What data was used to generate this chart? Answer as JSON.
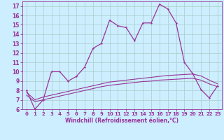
{
  "xlabel": "Windchill (Refroidissement éolien,°C)",
  "background_color": "#cceeff",
  "line_color": "#993399",
  "grid_color": "#aacccc",
  "xlim": [
    -0.5,
    23.5
  ],
  "ylim": [
    6,
    17.5
  ],
  "xticks": [
    0,
    1,
    2,
    3,
    4,
    5,
    6,
    7,
    8,
    9,
    10,
    11,
    12,
    13,
    14,
    15,
    16,
    17,
    18,
    19,
    20,
    21,
    22,
    23
  ],
  "yticks": [
    6,
    7,
    8,
    9,
    10,
    11,
    12,
    13,
    14,
    15,
    16,
    17
  ],
  "line1_x": [
    0,
    1,
    2,
    3,
    4,
    5,
    6,
    7,
    8,
    9,
    10,
    11,
    12,
    13,
    14,
    15,
    16,
    17,
    18,
    19,
    20,
    21,
    22,
    23
  ],
  "line1_y": [
    8.0,
    6.0,
    7.0,
    10.0,
    10.0,
    9.0,
    9.5,
    10.5,
    12.5,
    13.0,
    15.5,
    14.9,
    14.7,
    13.3,
    15.2,
    15.2,
    17.2,
    16.7,
    15.2,
    11.0,
    9.8,
    8.1,
    7.2,
    8.5
  ],
  "line2_x": [
    0,
    1,
    2,
    3,
    4,
    5,
    6,
    7,
    8,
    9,
    10,
    11,
    12,
    13,
    14,
    15,
    16,
    17,
    18,
    19,
    20,
    21,
    22,
    23
  ],
  "line2_y": [
    7.8,
    7.0,
    7.3,
    7.5,
    7.7,
    7.9,
    8.1,
    8.3,
    8.5,
    8.7,
    8.9,
    9.0,
    9.1,
    9.2,
    9.3,
    9.4,
    9.5,
    9.6,
    9.65,
    9.7,
    9.75,
    9.55,
    9.1,
    8.7
  ],
  "line3_x": [
    0,
    1,
    2,
    3,
    4,
    5,
    6,
    7,
    8,
    9,
    10,
    11,
    12,
    13,
    14,
    15,
    16,
    17,
    18,
    19,
    20,
    21,
    22,
    23
  ],
  "line3_y": [
    7.5,
    6.8,
    7.0,
    7.2,
    7.4,
    7.6,
    7.8,
    8.0,
    8.2,
    8.4,
    8.55,
    8.65,
    8.75,
    8.85,
    8.95,
    9.0,
    9.1,
    9.15,
    9.2,
    9.25,
    9.3,
    9.1,
    8.7,
    8.4
  ]
}
